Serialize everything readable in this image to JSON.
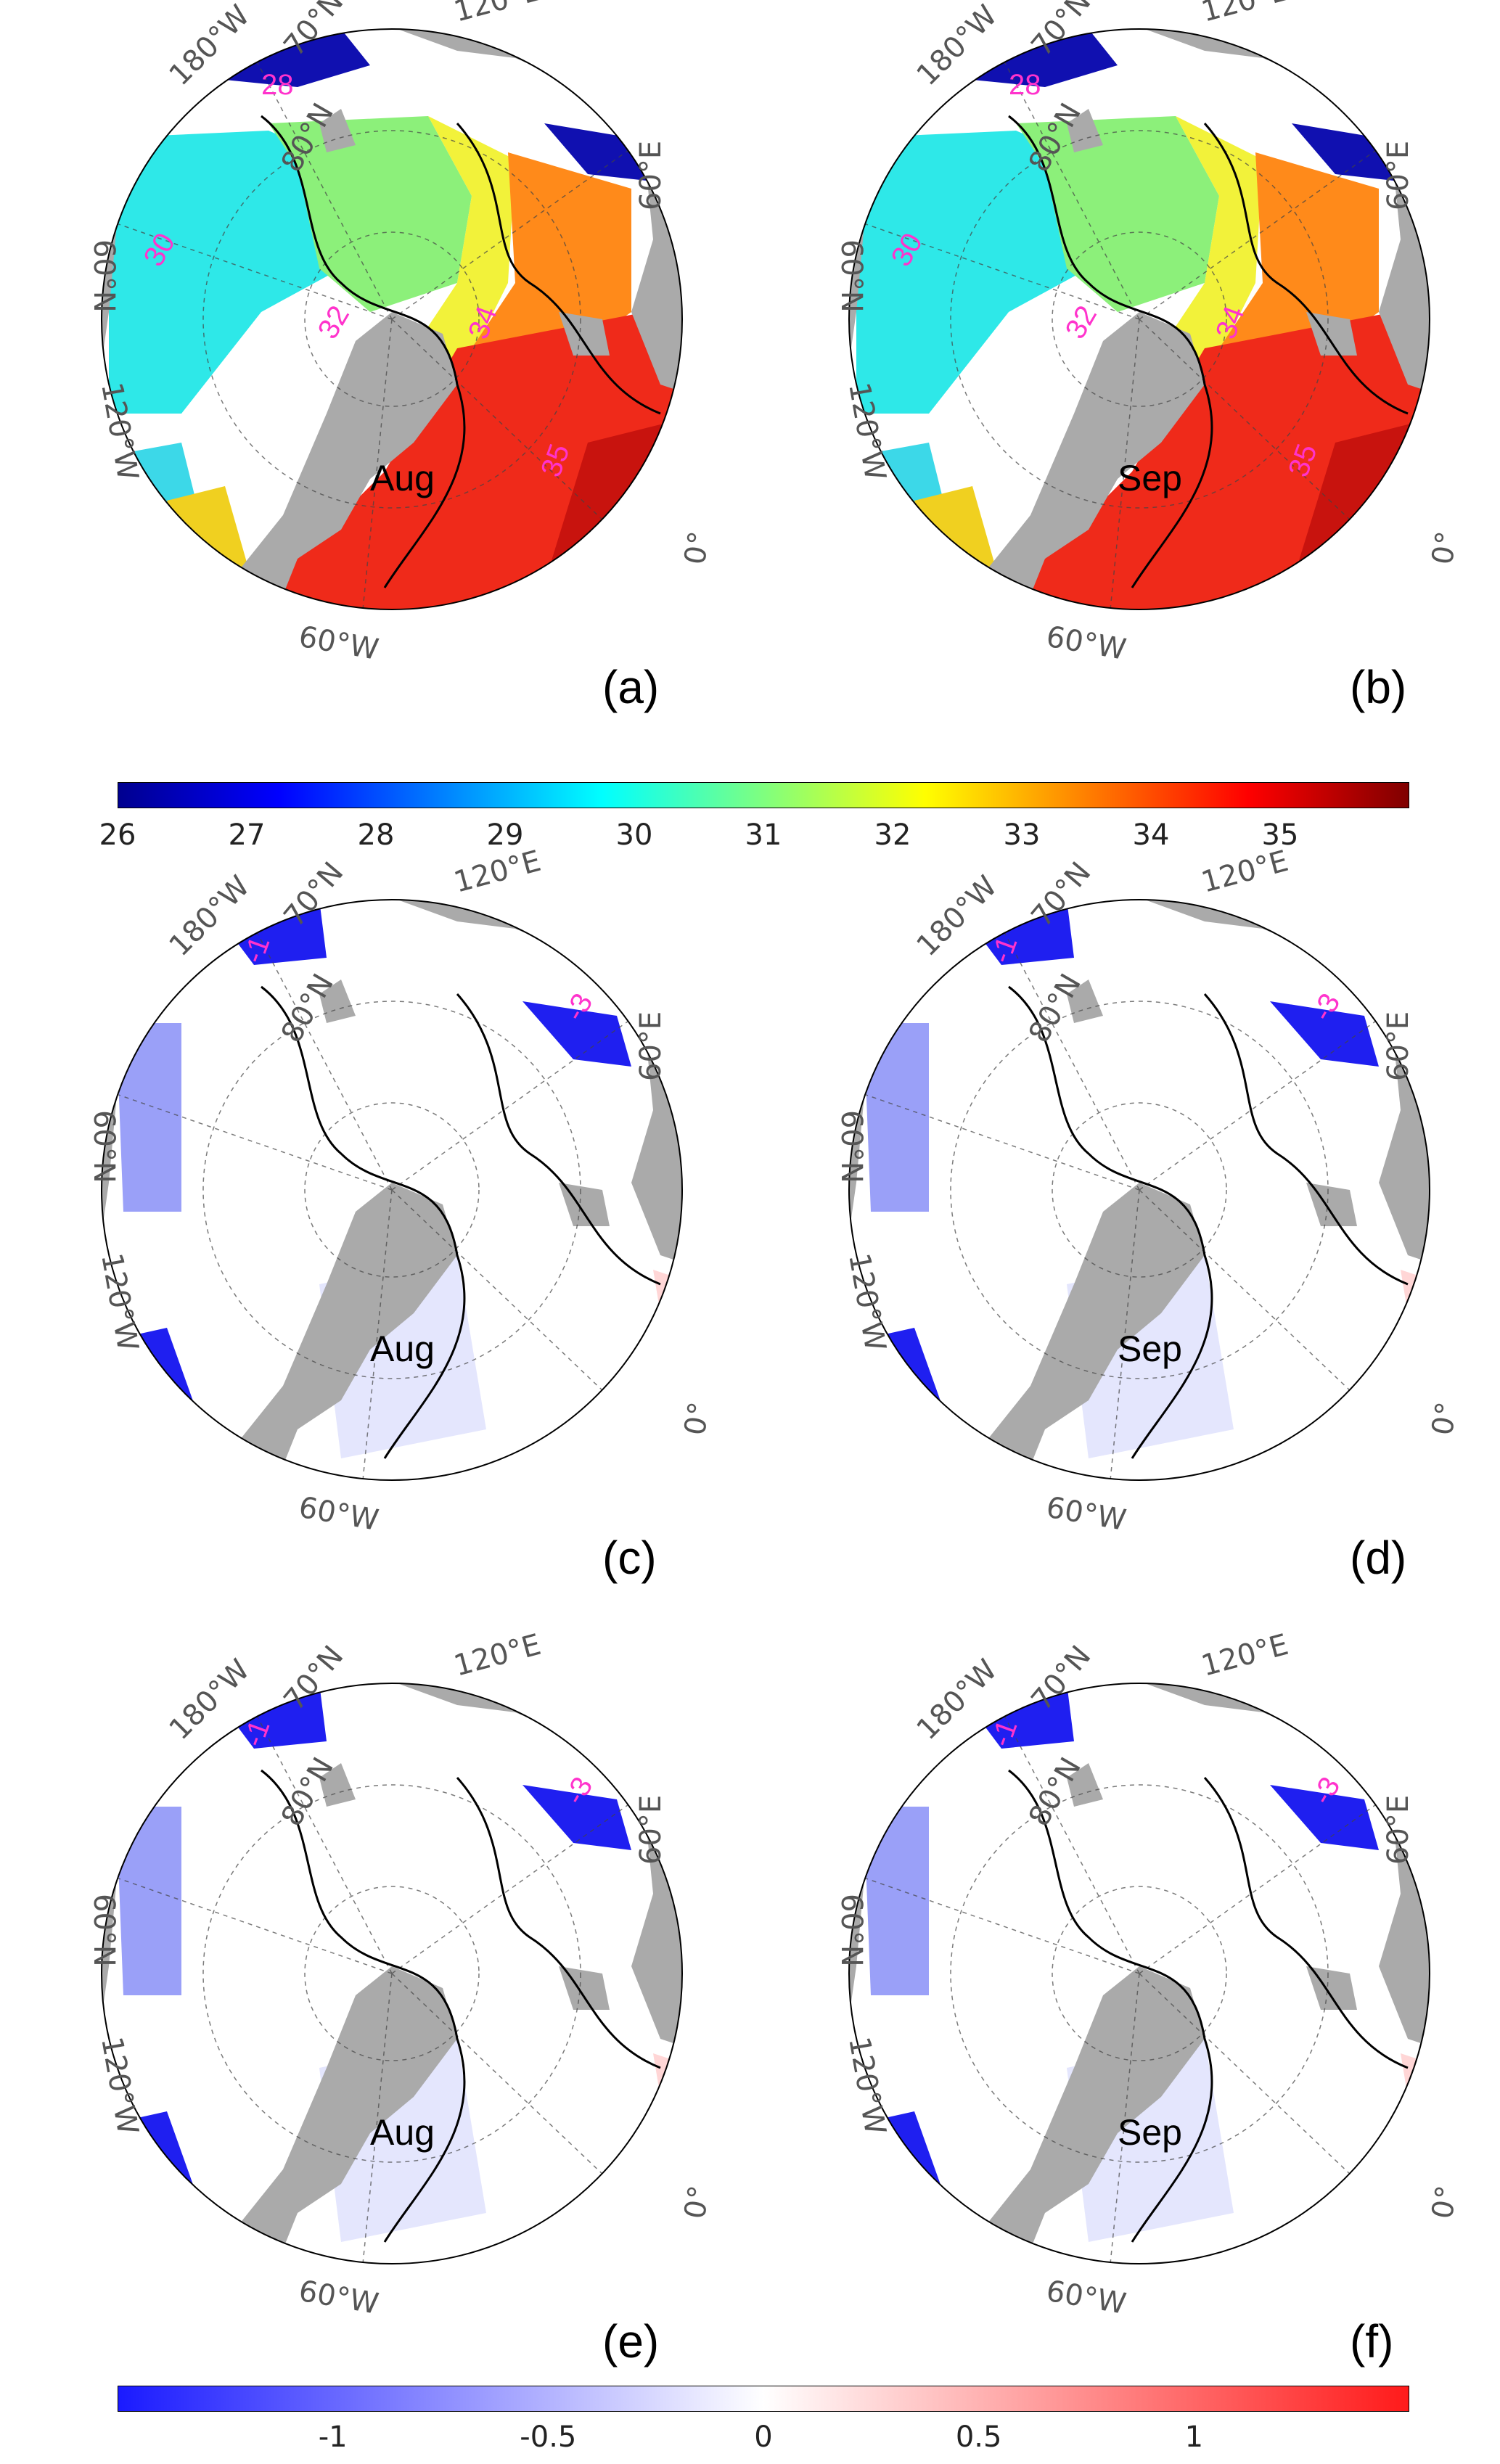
{
  "panels": [
    {
      "id": "a",
      "label": "(a)",
      "month": "Aug",
      "kind": "sss"
    },
    {
      "id": "b",
      "label": "(b)",
      "month": "Sep",
      "kind": "sss"
    },
    {
      "id": "c",
      "label": "(c)",
      "month": "Aug",
      "kind": "diff"
    },
    {
      "id": "d",
      "label": "(d)",
      "month": "Sep",
      "kind": "diff"
    },
    {
      "id": "e",
      "label": "(e)",
      "month": "Aug",
      "kind": "diff"
    },
    {
      "id": "f",
      "label": "(f)",
      "month": "Sep",
      "kind": "diff"
    }
  ],
  "grid_labels": {
    "lon_120E": "120°E",
    "lon_180W": "180°W",
    "lon_60E": "60°E",
    "lon_60N": "60°N",
    "lon_120W": "120°W",
    "lon_60W": "60°W",
    "lon_0": "0°",
    "lat_70N": "70°N",
    "lat_80N": "80°N"
  },
  "contour_labels_sss": [
    "30",
    "32",
    "34",
    "35",
    "28"
  ],
  "contour_labels_diff": [
    "-1",
    "-3"
  ],
  "colorbar_top": {
    "colormap": "jet",
    "range": [
      26,
      36
    ],
    "ticks": [
      "26",
      "27",
      "28",
      "29",
      "30",
      "31",
      "32",
      "33",
      "34",
      "35"
    ]
  },
  "colorbar_bottom": {
    "colormap": "blue-white-red",
    "range": [
      -1.5,
      1.5
    ],
    "ticks": [
      "-1",
      "-0.5",
      "0",
      "0.5",
      "1"
    ]
  },
  "colors": {
    "land": "#aaaaaa",
    "ocean_bg": "#ffffff",
    "contour": "#000000",
    "contour_label": "#ff33cc"
  }
}
